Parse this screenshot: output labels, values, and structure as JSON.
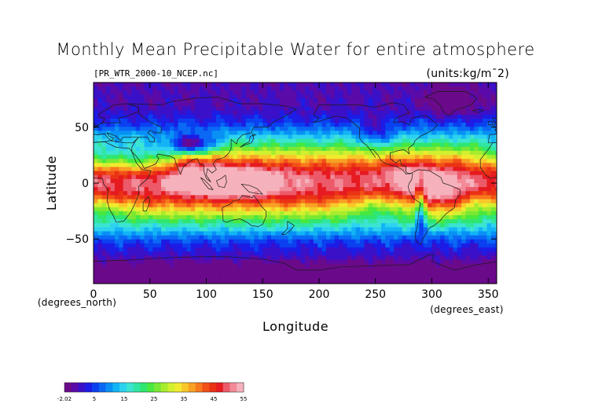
{
  "chart_data": {
    "type": "heatmap",
    "title": "Monthly Mean Precipitable Water for entire atmosphere",
    "subtitle": "[PR_WTR_2000-10_NCEP.nc]",
    "units_label": "(units:kg/m¯2)",
    "xlabel": "Longitude",
    "ylabel": "Latitude",
    "x_units": "(degrees_east)",
    "y_units": "(degrees_north)",
    "xlim": [
      0,
      357.5
    ],
    "ylim": [
      -90,
      90
    ],
    "x_ticks": [
      0,
      50,
      100,
      150,
      200,
      250,
      300,
      350
    ],
    "y_ticks": [
      -50,
      0,
      50
    ],
    "grid": false,
    "colorbar": {
      "min": -2.02,
      "max": 55,
      "ticks": [
        "-2.02",
        "5",
        "15",
        "25",
        "35",
        "45",
        "55"
      ],
      "colors": [
        "#6a0a8a",
        "#5a0aa8",
        "#3a10c8",
        "#1c1ce6",
        "#0a40f0",
        "#0a68f5",
        "#0890f5",
        "#12b4f5",
        "#2cd2f0",
        "#3ce4d2",
        "#30e6a2",
        "#2ee670",
        "#48e83e",
        "#7ae832",
        "#a8ec2e",
        "#d2f030",
        "#f2ea2e",
        "#f8c82a",
        "#f8a024",
        "#f8781e",
        "#f25018",
        "#ea3214",
        "#e61a20",
        "#ec5a6a",
        "#f28a98",
        "#f6b2bc"
      ]
    },
    "data_description": "Zonal field of precipitable water: maxima 45-55 over the Maritime Continent (~100-150E, 10S-15N) and Amazon; ~25-35 in subtropics; 5-15 at mid-latitudes; near 0 over Antarctica and the Tibetan plateau."
  }
}
